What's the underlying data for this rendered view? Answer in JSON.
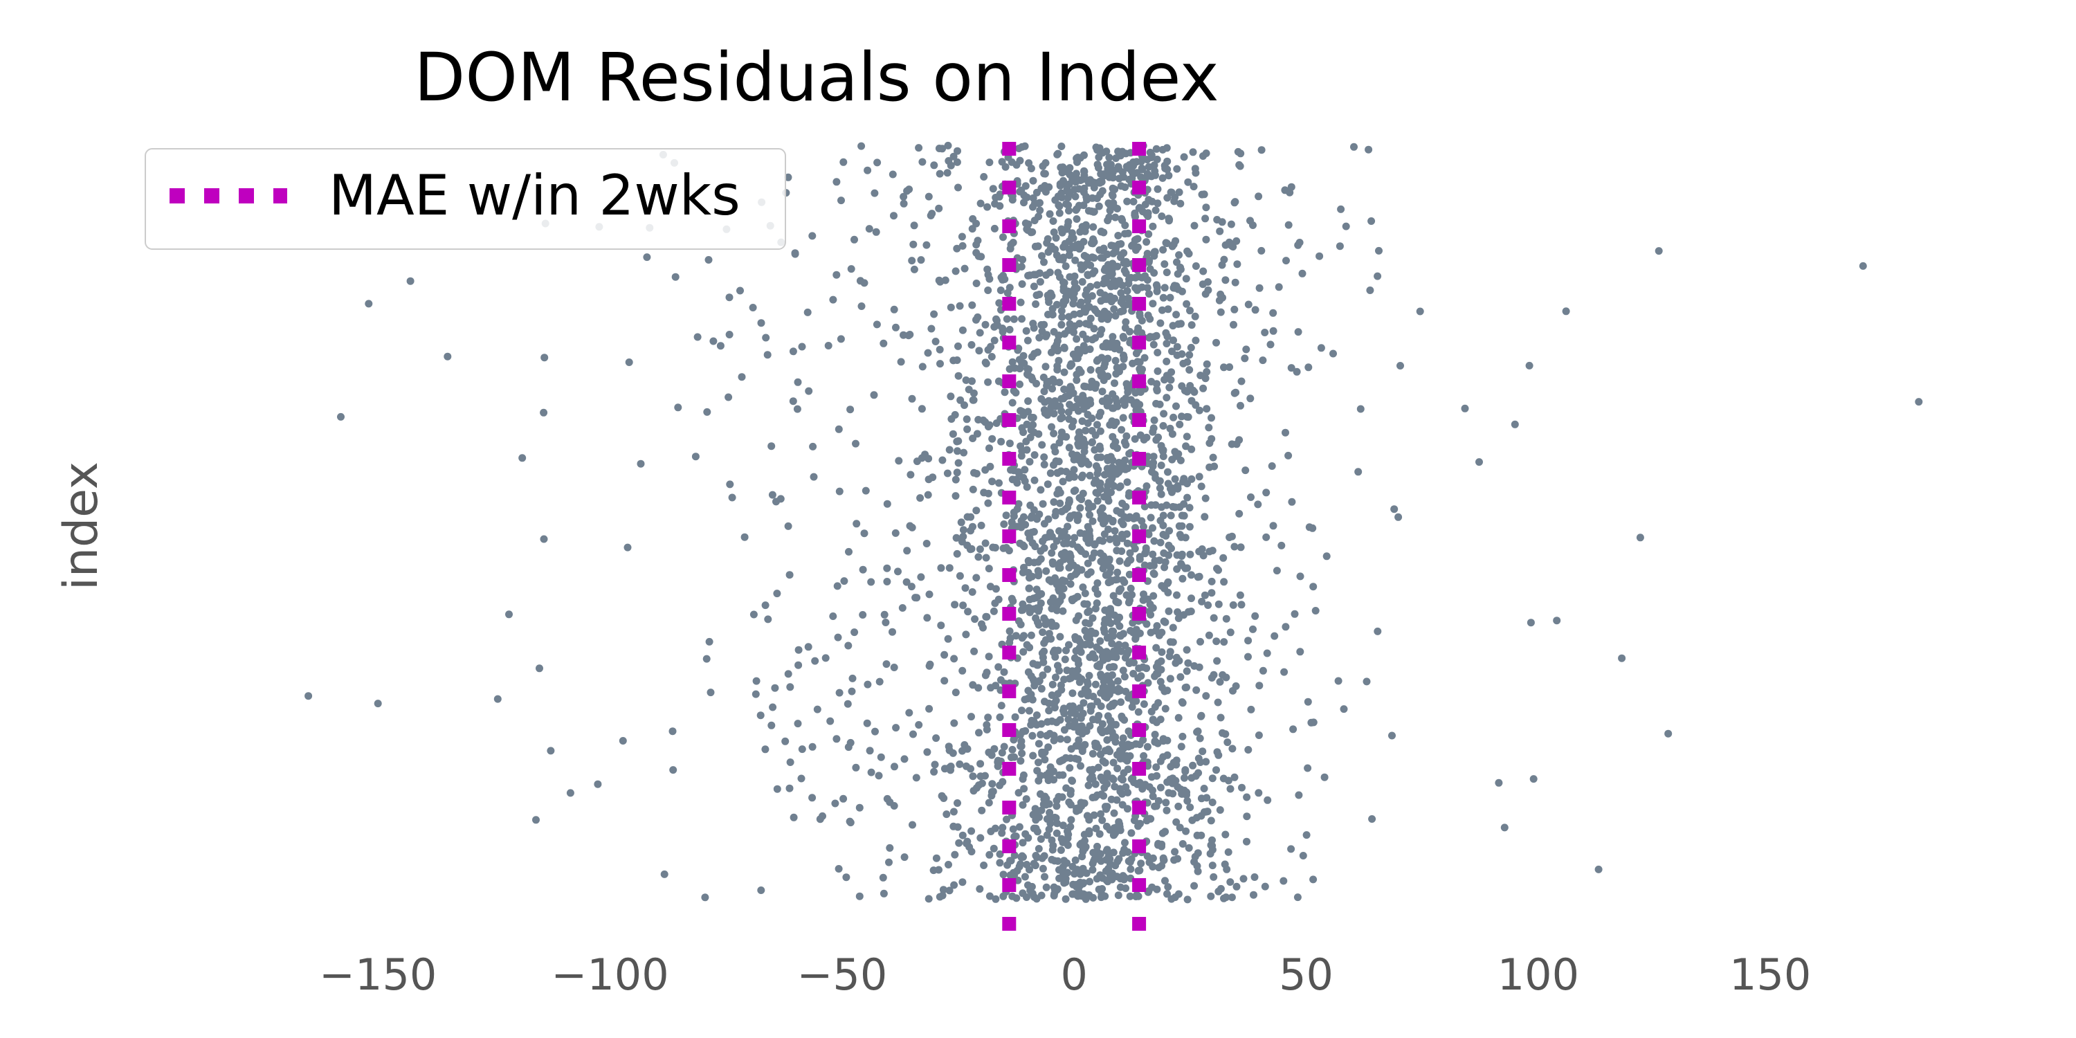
{
  "chart_data": {
    "type": "scatter",
    "title": "DOM Residuals on Index",
    "xlabel": "",
    "ylabel": "index",
    "xlim": [
      -180,
      195
    ],
    "xticks": [
      -150,
      -100,
      -50,
      0,
      50,
      100,
      150
    ],
    "xtick_labels": [
      "−150",
      "−100",
      "−50",
      "0",
      "50",
      "100",
      "150"
    ],
    "grid": false,
    "legend": {
      "placement": "top-left",
      "entries": [
        "MAE w/in 2wks"
      ]
    },
    "series": [
      {
        "name": "",
        "kind": "points",
        "color": "#708090",
        "description_values": "residuals spread around 0 (dense between about -15 and 30), tails out to about -165 and 182",
        "n_points": 3200,
        "center": 5,
        "spread": 30,
        "outliers": [
          [
            -165,
            0.27
          ],
          [
            -158,
            0.64
          ],
          [
            -150,
            0.26
          ],
          [
            -152,
            0.79
          ],
          [
            -143,
            0.82
          ],
          [
            -135,
            0.72
          ],
          [
            182,
            0.66
          ],
          [
            170,
            0.84
          ],
          [
            128,
            0.22
          ],
          [
            122,
            0.48
          ],
          [
            126,
            0.86
          ],
          [
            113,
            0.04
          ],
          [
            99,
            0.16
          ],
          [
            104,
            0.37
          ],
          [
            118,
            0.32
          ],
          [
            95,
            0.63
          ],
          [
            106,
            0.78
          ]
        ]
      },
      {
        "name": "MAE w/in 2wks",
        "kind": "vertical-lines",
        "color": "#bf00bf",
        "x": [
          -14,
          14
        ],
        "style": "dotted"
      }
    ]
  }
}
